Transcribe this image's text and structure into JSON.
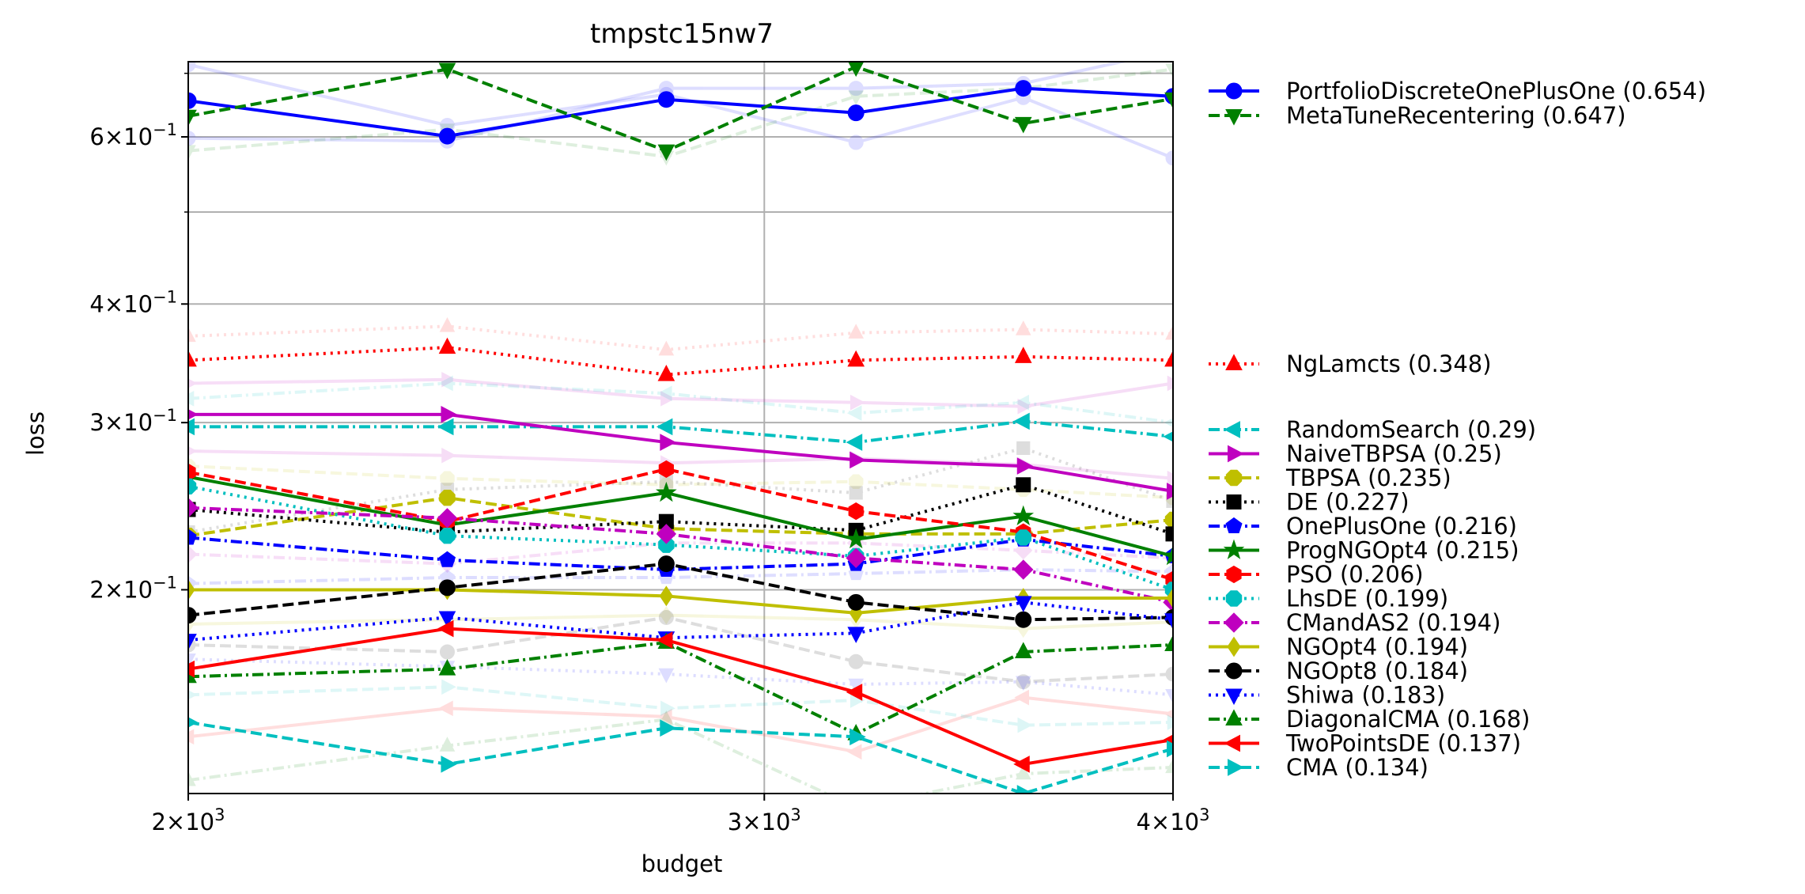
{
  "chart_data": {
    "type": "line",
    "title": "tmpstc15nw7",
    "xlabel": "budget",
    "ylabel": "loss",
    "xscale": "log",
    "yscale": "log",
    "xlim": [
      2000,
      4000
    ],
    "ylim": [
      0.122,
      0.72
    ],
    "x": [
      2000,
      2400,
      2800,
      3200,
      3600,
      4000
    ],
    "x_ticks": [
      {
        "value": 2000,
        "base": "2×10",
        "exp": "3"
      },
      {
        "value": 3000,
        "base": "3×10",
        "exp": "3"
      },
      {
        "value": 4000,
        "base": "4×10",
        "exp": "3"
      }
    ],
    "y_ticks": [
      {
        "value": 0.2,
        "base": "2×10",
        "exp": "−1"
      },
      {
        "value": 0.3,
        "base": "3×10",
        "exp": "−1"
      },
      {
        "value": 0.4,
        "base": "4×10",
        "exp": "−1"
      },
      {
        "value": 0.6,
        "base": "6×10",
        "exp": "−1"
      }
    ],
    "y_minor_grid": [
      0.5,
      0.7
    ],
    "grid": true,
    "legend_position": "outside-right",
    "series": [
      {
        "name": "PortfolioDiscreteOnePlusOne (0.654)",
        "color": "#0000ff",
        "dash": "solid",
        "marker": "circle",
        "values": [
          0.655,
          0.601,
          0.657,
          0.636,
          0.675,
          0.662
        ]
      },
      {
        "name": "MetaTuneRecentering (0.647)",
        "color": "#008000",
        "dash": "dashed",
        "marker": "triangle-down",
        "values": [
          0.631,
          0.707,
          0.58,
          0.711,
          0.62,
          0.658
        ]
      },
      {
        "name": "NgLamcts (0.348)",
        "color": "#ff0000",
        "dash": "dotted",
        "marker": "triangle-up",
        "values": [
          0.349,
          0.36,
          0.337,
          0.349,
          0.352,
          0.349
        ]
      },
      {
        "name": "RandomSearch (0.29)",
        "color": "#00bfbf",
        "dash": "dashdot",
        "marker": "triangle-left",
        "values": [
          0.297,
          0.297,
          0.297,
          0.286,
          0.301,
          0.29
        ]
      },
      {
        "name": "NaiveTBPSA (0.25)",
        "color": "#bf00bf",
        "dash": "solid",
        "marker": "triangle-right",
        "values": [
          0.306,
          0.306,
          0.286,
          0.274,
          0.27,
          0.254
        ]
      },
      {
        "name": "TBPSA (0.235)",
        "color": "#bfbf00",
        "dash": "dashed",
        "marker": "octagon",
        "values": [
          0.228,
          0.25,
          0.232,
          0.229,
          0.229,
          0.237
        ]
      },
      {
        "name": "DE (0.227)",
        "color": "#000000",
        "dash": "dotted",
        "marker": "square",
        "values": [
          0.243,
          0.23,
          0.236,
          0.231,
          0.258,
          0.229
        ]
      },
      {
        "name": "OnePlusOne (0.216)",
        "color": "#0000ff",
        "dash": "dashdot",
        "marker": "pentagon",
        "values": [
          0.227,
          0.215,
          0.21,
          0.213,
          0.226,
          0.217
        ]
      },
      {
        "name": "ProgNGOpt4 (0.215)",
        "color": "#008000",
        "dash": "solid",
        "marker": "star",
        "values": [
          0.263,
          0.234,
          0.253,
          0.226,
          0.239,
          0.217
        ]
      },
      {
        "name": "PSO (0.206)",
        "color": "#ff0000",
        "dash": "dashed",
        "marker": "hexagon",
        "values": [
          0.266,
          0.236,
          0.268,
          0.242,
          0.23,
          0.205
        ]
      },
      {
        "name": "LhsDE (0.199)",
        "color": "#00bfbf",
        "dash": "dotted",
        "marker": "octagon",
        "values": [
          0.257,
          0.228,
          0.223,
          0.217,
          0.227,
          0.2
        ]
      },
      {
        "name": "CMandAS2 (0.194)",
        "color": "#bf00bf",
        "dash": "dashdot",
        "marker": "diamond",
        "values": [
          0.244,
          0.238,
          0.229,
          0.216,
          0.21,
          0.194
        ]
      },
      {
        "name": "NGOpt4 (0.194)",
        "color": "#bfbf00",
        "dash": "solid",
        "marker": "thin-diamond",
        "values": [
          0.2,
          0.2,
          0.197,
          0.189,
          0.196,
          0.196
        ]
      },
      {
        "name": "NGOpt8 (0.184)",
        "color": "#000000",
        "dash": "dashed",
        "marker": "circle",
        "values": [
          0.188,
          0.201,
          0.213,
          0.194,
          0.186,
          0.187
        ]
      },
      {
        "name": "Shiwa (0.183)",
        "color": "#0000ff",
        "dash": "dotted",
        "marker": "triangle-down",
        "values": [
          0.177,
          0.187,
          0.178,
          0.18,
          0.194,
          0.186
        ]
      },
      {
        "name": "DiagonalCMA (0.168)",
        "color": "#008000",
        "dash": "dashdot",
        "marker": "triangle-up",
        "values": [
          0.162,
          0.165,
          0.176,
          0.141,
          0.172,
          0.175
        ]
      },
      {
        "name": "TwoPointsDE (0.137)",
        "color": "#ff0000",
        "dash": "solid",
        "marker": "triangle-left",
        "values": [
          0.165,
          0.182,
          0.177,
          0.156,
          0.131,
          0.139
        ]
      },
      {
        "name": "CMA (0.134)",
        "color": "#00bfbf",
        "dash": "dashed",
        "marker": "triangle-right",
        "values": [
          0.145,
          0.131,
          0.143,
          0.14,
          0.122,
          0.136
        ]
      }
    ],
    "faded_series": [
      {
        "color": "#0000ff",
        "dash": "solid",
        "marker": "circle",
        "values": [
          0.715,
          0.617,
          0.665,
          0.592,
          0.66,
          0.57
        ]
      },
      {
        "color": "#0000ff",
        "dash": "solid",
        "marker": "circle",
        "values": [
          0.598,
          0.594,
          0.675,
          0.675,
          0.683,
          0.74
        ]
      },
      {
        "color": "#008000",
        "dash": "dashed",
        "marker": "triangle-down",
        "values": [
          0.58,
          0.611,
          0.572,
          0.662,
          0.675,
          0.707
        ]
      },
      {
        "color": "#ff0000",
        "dash": "dotted",
        "marker": "triangle-up",
        "values": [
          0.37,
          0.379,
          0.358,
          0.373,
          0.376,
          0.372
        ]
      },
      {
        "color": "#bf00bf",
        "dash": "solid",
        "marker": "triangle-right",
        "values": [
          0.33,
          0.333,
          0.318,
          0.315,
          0.312,
          0.33
        ]
      },
      {
        "color": "#00bfbf",
        "dash": "dashdot",
        "marker": "triangle-left",
        "values": [
          0.318,
          0.33,
          0.322,
          0.307,
          0.315,
          0.3
        ]
      },
      {
        "color": "#bf00bf",
        "dash": "solid",
        "marker": "triangle-right",
        "values": [
          0.28,
          0.277,
          0.272,
          0.275,
          0.271,
          0.262
        ]
      },
      {
        "color": "#bfbf00",
        "dash": "dashed",
        "marker": "octagon",
        "values": [
          0.27,
          0.262,
          0.258,
          0.26,
          0.255,
          0.25
        ]
      },
      {
        "color": "#000000",
        "dash": "dotted",
        "marker": "square",
        "values": [
          0.23,
          0.255,
          0.26,
          0.253,
          0.282,
          0.248
        ]
      },
      {
        "color": "#bf00bf",
        "dash": "dashdot",
        "marker": "diamond",
        "values": [
          0.218,
          0.213,
          0.224,
          0.224,
          0.22,
          0.216
        ]
      },
      {
        "color": "#0000ff",
        "dash": "dashdot",
        "marker": "pentagon",
        "values": [
          0.203,
          0.206,
          0.206,
          0.208,
          0.21,
          0.209
        ]
      },
      {
        "color": "#bfbf00",
        "dash": "solid",
        "marker": "thin-diamond",
        "values": [
          0.184,
          0.186,
          0.188,
          0.186,
          0.182,
          0.185
        ]
      },
      {
        "color": "#000000",
        "dash": "dashed",
        "marker": "circle",
        "values": [
          0.175,
          0.172,
          0.187,
          0.168,
          0.16,
          0.163
        ]
      },
      {
        "color": "#0000ff",
        "dash": "dotted",
        "marker": "triangle-down",
        "values": [
          0.169,
          0.166,
          0.163,
          0.159,
          0.16,
          0.155
        ]
      },
      {
        "color": "#ff0000",
        "dash": "solid",
        "marker": "triangle-left",
        "values": [
          0.14,
          0.15,
          0.147,
          0.135,
          0.154,
          0.148
        ]
      },
      {
        "color": "#008000",
        "dash": "dashdot",
        "marker": "triangle-up",
        "values": [
          0.126,
          0.137,
          0.146,
          0.118,
          0.128,
          0.13
        ]
      },
      {
        "color": "#00bfbf",
        "dash": "dashed",
        "marker": "triangle-right",
        "values": [
          0.155,
          0.158,
          0.15,
          0.153,
          0.144,
          0.145
        ]
      }
    ]
  }
}
